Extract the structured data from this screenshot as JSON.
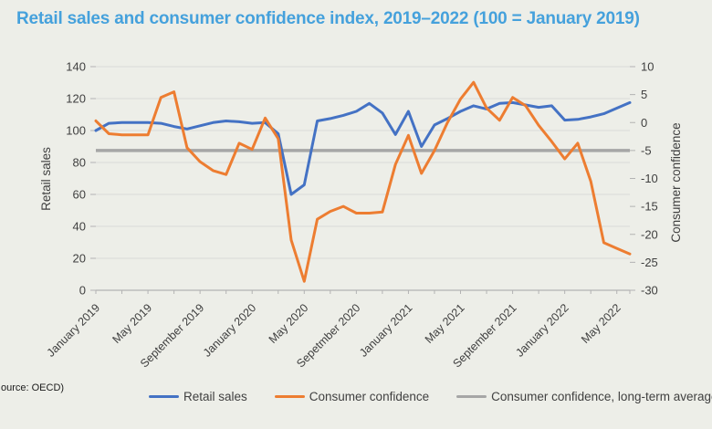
{
  "title": {
    "text": "Retail sales and consumer confidence index, 2019–2022 (100 = January 2019)",
    "color": "#45a1dc"
  },
  "source_note": {
    "visible_text": "ource: OECD)"
  },
  "colors": {
    "background": "#edeee8",
    "grid": "#d9d9d9",
    "axis": "#b3b3b3",
    "text": "#3f3f3f",
    "retail_sales": "#4472c4",
    "consumer_confidence": "#ed7d31",
    "long_term_average": "#a6a6a6"
  },
  "chart_data": {
    "type": "line",
    "months": [
      "Jan 2019",
      "Feb 2019",
      "Mar 2019",
      "Apr 2019",
      "May 2019",
      "Jun 2019",
      "Jul 2019",
      "Aug 2019",
      "Sep 2019",
      "Oct 2019",
      "Nov 2019",
      "Dec 2019",
      "Jan 2020",
      "Feb 2020",
      "Mar 2020",
      "Apr 2020",
      "May 2020",
      "Jun 2020",
      "Jul 2020",
      "Aug 2020",
      "Sep 2020",
      "Oct 2020",
      "Nov 2020",
      "Dec 2020",
      "Jan 2021",
      "Feb 2021",
      "Mar 2021",
      "Apr 2021",
      "May 2021",
      "Jun 2021",
      "Jul 2021",
      "Aug 2021",
      "Sep 2021",
      "Oct 2021",
      "Nov 2021",
      "Dec 2021",
      "Jan 2022",
      "Feb 2022",
      "Mar 2022",
      "Apr 2022",
      "May 2022",
      "Jun 2022"
    ],
    "x_axis": {
      "tick_every_months": 2,
      "label_indices": [
        0,
        4,
        8,
        12,
        16,
        20,
        24,
        28,
        32,
        36,
        40
      ],
      "labels": [
        "January 2019",
        "May 2019",
        "September 2019",
        "January 2020",
        "May 2020",
        "Sepetmber 2020",
        "January 2021",
        "May 2021",
        "September 2021",
        "January 2022",
        "May 2022"
      ]
    },
    "left_axis": {
      "title": "Retail sales",
      "min": 0,
      "max": 140,
      "ticks": [
        0,
        20,
        40,
        60,
        80,
        100,
        120,
        140
      ]
    },
    "right_axis": {
      "title": "Consumer confidence",
      "min": -30,
      "max": 10,
      "ticks": [
        10,
        5,
        0,
        -5,
        -10,
        -15,
        -20,
        -25,
        -30
      ]
    },
    "grid": true,
    "legend_position": "bottom",
    "series": [
      {
        "name": "Retail sales",
        "axis": "left",
        "color": "#4472c4",
        "values": [
          100,
          104.5,
          105,
          105,
          105,
          104.5,
          102.5,
          101,
          103,
          105,
          106,
          105.5,
          104.5,
          105,
          98,
          60,
          66,
          106,
          107.5,
          109.5,
          112,
          117,
          111,
          97.5,
          112,
          90,
          103.5,
          107.5,
          112,
          115.5,
          113.5,
          117,
          117.5,
          116,
          114.5,
          115.5,
          106.5,
          107,
          108.5,
          110.5,
          114,
          117.5
        ]
      },
      {
        "name": "Consumer confidence",
        "axis": "right",
        "color": "#ed7d31",
        "values": [
          0.3,
          -2,
          -2.2,
          -2.2,
          -2.2,
          4.5,
          5.5,
          -4.5,
          -7,
          -8.6,
          -9.3,
          -3.7,
          -4.8,
          0.8,
          -2.9,
          -21,
          -28.4,
          -17.3,
          -15.9,
          -15,
          -16.2,
          -16.2,
          -16,
          -7.5,
          -2.3,
          -9.1,
          -5,
          0,
          4.2,
          7.2,
          2.6,
          0.4,
          4.5,
          3,
          -0.5,
          -3.4,
          -6.5,
          -3.7,
          -10.5,
          -21.5,
          -22.5,
          -23.5
        ]
      },
      {
        "name": "Consumer confidence, long-term average",
        "axis": "right",
        "color": "#a6a6a6",
        "constant": -5
      }
    ]
  }
}
